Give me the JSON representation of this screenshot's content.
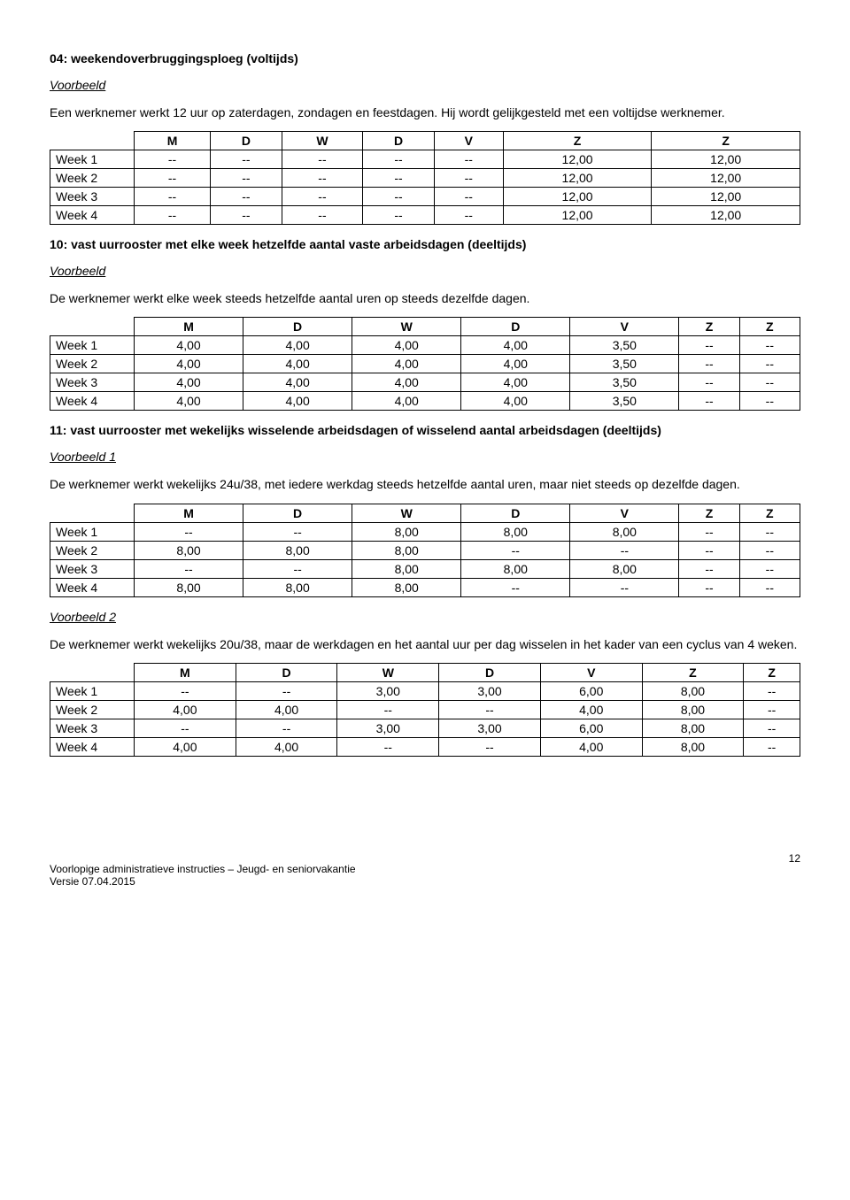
{
  "sections": [
    {
      "title": "04: weekendoverbruggingsploeg (voltijds)",
      "example_label": "Voorbeeld",
      "description": "Een werknemer werkt 12 uur op zaterdagen, zondagen en feestdagen. Hij wordt gelijkgesteld met een voltijdse werknemer.",
      "table": {
        "headers": [
          "M",
          "D",
          "W",
          "D",
          "V",
          "Z",
          "Z"
        ],
        "rows": [
          {
            "label": "Week 1",
            "cells": [
              "--",
              "--",
              "--",
              "--",
              "--",
              "12,00",
              "12,00"
            ]
          },
          {
            "label": "Week 2",
            "cells": [
              "--",
              "--",
              "--",
              "--",
              "--",
              "12,00",
              "12,00"
            ]
          },
          {
            "label": "Week 3",
            "cells": [
              "--",
              "--",
              "--",
              "--",
              "--",
              "12,00",
              "12,00"
            ]
          },
          {
            "label": "Week 4",
            "cells": [
              "--",
              "--",
              "--",
              "--",
              "--",
              "12,00",
              "12,00"
            ]
          }
        ]
      }
    },
    {
      "title": "10: vast uurrooster met elke week hetzelfde aantal vaste arbeidsdagen (deeltijds)",
      "example_label": "Voorbeeld",
      "description": "De werknemer werkt elke week steeds hetzelfde aantal uren op steeds dezelfde dagen.",
      "table": {
        "headers": [
          "M",
          "D",
          "W",
          "D",
          "V",
          "Z",
          "Z"
        ],
        "rows": [
          {
            "label": "Week 1",
            "cells": [
              "4,00",
              "4,00",
              "4,00",
              "4,00",
              "3,50",
              "--",
              "--"
            ]
          },
          {
            "label": "Week 2",
            "cells": [
              "4,00",
              "4,00",
              "4,00",
              "4,00",
              "3,50",
              "--",
              "--"
            ]
          },
          {
            "label": "Week 3",
            "cells": [
              "4,00",
              "4,00",
              "4,00",
              "4,00",
              "3,50",
              "--",
              "--"
            ]
          },
          {
            "label": "Week 4",
            "cells": [
              "4,00",
              "4,00",
              "4,00",
              "4,00",
              "3,50",
              "--",
              "--"
            ]
          }
        ]
      }
    },
    {
      "title": "11: vast uurrooster met wekelijks wisselende arbeidsdagen of wisselend aantal arbeidsdagen (deeltijds)",
      "example_label": "Voorbeeld 1",
      "description": "De werknemer werkt wekelijks 24u/38, met iedere werkdag steeds hetzelfde aantal uren, maar niet steeds op dezelfde dagen.",
      "table": {
        "headers": [
          "M",
          "D",
          "W",
          "D",
          "V",
          "Z",
          "Z"
        ],
        "rows": [
          {
            "label": "Week 1",
            "cells": [
              "--",
              "--",
              "8,00",
              "8,00",
              "8,00",
              "--",
              "--"
            ]
          },
          {
            "label": "Week 2",
            "cells": [
              "8,00",
              "8,00",
              "8,00",
              "--",
              "--",
              "--",
              "--"
            ]
          },
          {
            "label": "Week 3",
            "cells": [
              "--",
              "--",
              "8,00",
              "8,00",
              "8,00",
              "--",
              "--"
            ]
          },
          {
            "label": "Week 4",
            "cells": [
              "8,00",
              "8,00",
              "8,00",
              "--",
              "--",
              "--",
              "--"
            ]
          }
        ]
      }
    },
    {
      "example_label": "Voorbeeld 2",
      "description": "De werknemer werkt wekelijks 20u/38, maar de werkdagen en het aantal uur per dag wisselen in het kader van een cyclus van 4 weken.",
      "table": {
        "headers": [
          "M",
          "D",
          "W",
          "D",
          "V",
          "Z",
          "Z"
        ],
        "rows": [
          {
            "label": "Week 1",
            "cells": [
              "--",
              "--",
              "3,00",
              "3,00",
              "6,00",
              "8,00",
              "--"
            ]
          },
          {
            "label": "Week 2",
            "cells": [
              "4,00",
              "4,00",
              "--",
              "--",
              "4,00",
              "8,00",
              "--"
            ]
          },
          {
            "label": "Week 3",
            "cells": [
              "--",
              "--",
              "3,00",
              "3,00",
              "6,00",
              "8,00",
              "--"
            ]
          },
          {
            "label": "Week 4",
            "cells": [
              "4,00",
              "4,00",
              "--",
              "--",
              "4,00",
              "8,00",
              "--"
            ]
          }
        ]
      }
    }
  ],
  "footer": {
    "line1": "Voorlopige administratieve instructies – Jeugd- en seniorvakantie",
    "line2": "Versie 07.04.2015",
    "page": "12"
  }
}
